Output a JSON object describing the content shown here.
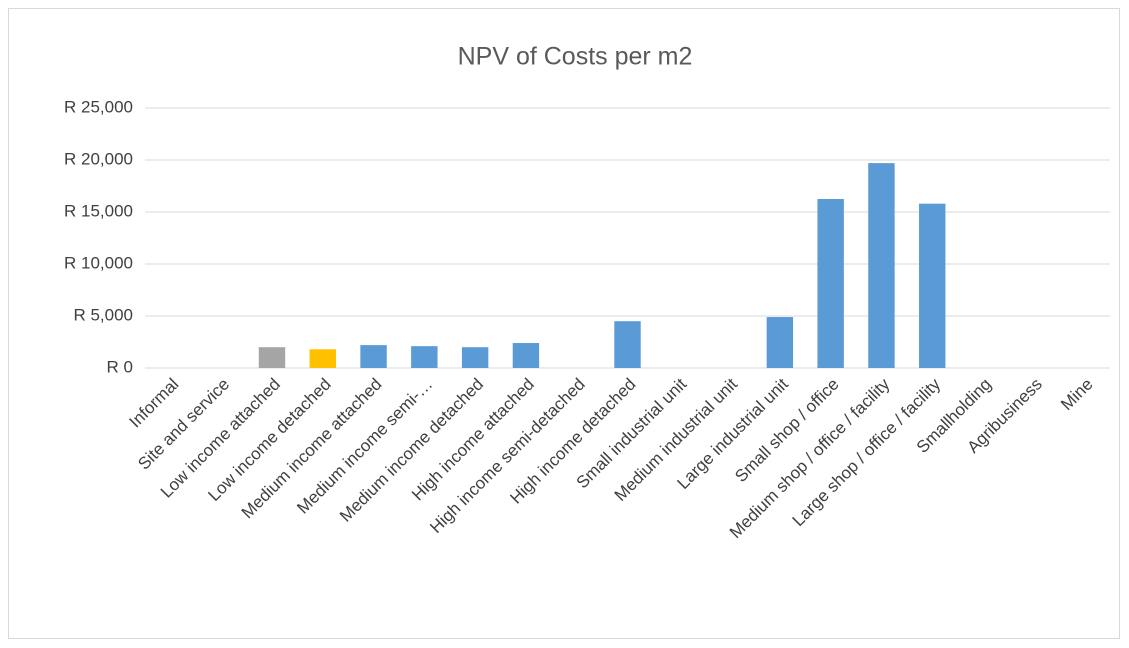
{
  "chart_data": {
    "type": "bar",
    "title": "NPV of Costs per m2",
    "categories": [
      "Informal",
      "Site and service",
      "Low income attached",
      "Low income detached",
      "Medium income attached",
      "Medium income semi-…",
      "Medium income detached",
      "High income attached",
      "High income semi-detached",
      "High income detached",
      "Small industrial unit",
      "Medium industrial unit",
      "Large industrial unit",
      "Small shop / office",
      "Medium shop / office / facility",
      "Large shop / office / facility",
      "Smallholding",
      "Agribusiness",
      "Mine"
    ],
    "values": [
      0,
      0,
      2000,
      1800,
      2200,
      2100,
      2000,
      2400,
      0,
      4500,
      0,
      0,
      4900,
      16250,
      19700,
      15800,
      0,
      0,
      0
    ],
    "colors": [
      "#5b9bd5",
      "#5b9bd5",
      "#a5a5a5",
      "#ffc000",
      "#5b9bd5",
      "#5b9bd5",
      "#5b9bd5",
      "#5b9bd5",
      "#5b9bd5",
      "#5b9bd5",
      "#5b9bd5",
      "#5b9bd5",
      "#5b9bd5",
      "#5b9bd5",
      "#5b9bd5",
      "#5b9bd5",
      "#5b9bd5",
      "#5b9bd5",
      "#5b9bd5"
    ],
    "ylim": [
      0,
      25000
    ],
    "yticks": [
      {
        "value": 0,
        "label": "R 0"
      },
      {
        "value": 5000,
        "label": "R 5,000"
      },
      {
        "value": 10000,
        "label": "R 10,000"
      },
      {
        "value": 15000,
        "label": "R 15,000"
      },
      {
        "value": 20000,
        "label": "R 20,000"
      },
      {
        "value": 25000,
        "label": "R 25,000"
      }
    ],
    "grid": true
  }
}
